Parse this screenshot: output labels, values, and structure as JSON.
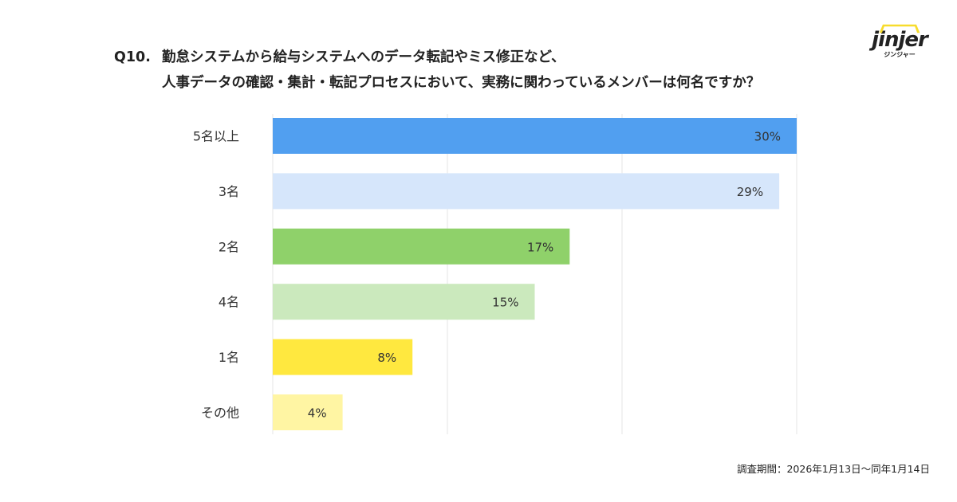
{
  "title": {
    "q": "Q10.",
    "line1": "勤怠システムから給与システムへのデータ転記やミス修正など、",
    "line2": "人事データの確認・集計・転記プロセスにおいて、実務に関わっているメンバーは何名ですか？"
  },
  "logo": {
    "word": "jinjer",
    "kana": "ジンジャー"
  },
  "footer": "調査期間：2026年1月13日〜同年1月14日",
  "chart_data": {
    "type": "bar",
    "orientation": "horizontal",
    "categories": [
      "5名以上",
      "3名",
      "2名",
      "4名",
      "1名",
      "その他"
    ],
    "values": [
      30,
      29,
      17,
      15,
      8,
      4
    ],
    "labels": [
      "30%",
      "29%",
      "17%",
      "15%",
      "8%",
      "4%"
    ],
    "colors": [
      "#519ff0",
      "#d6e6fb",
      "#8fd16a",
      "#cbe9bd",
      "#ffe83f",
      "#fff5a3"
    ],
    "xlim": [
      0,
      30
    ],
    "grid": true
  }
}
